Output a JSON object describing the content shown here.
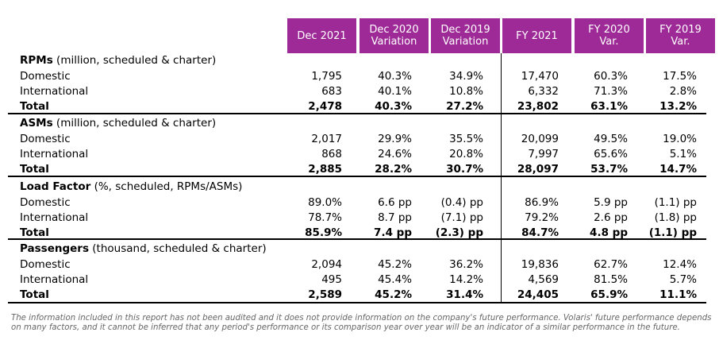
{
  "headers": [
    "Dec 2021",
    "Dec 2020\nVariation",
    "Dec 2019\nVariation",
    "FY 2021",
    "FY 2020\nVar.",
    "FY 2019\nVar."
  ],
  "sections": [
    {
      "title": "RPMs",
      "unit": " (million, scheduled & charter)",
      "rows": [
        {
          "label": "Domestic",
          "values": [
            "1,795",
            "40.3%",
            "34.9%",
            "17,470",
            "60.3%",
            "17.5%"
          ]
        },
        {
          "label": "International",
          "values": [
            "683",
            "40.1%",
            "10.8%",
            "6,332",
            "71.3%",
            "2.8%"
          ]
        },
        {
          "label": "Total",
          "values": [
            "2,478",
            "40.3%",
            "27.2%",
            "23,802",
            "63.1%",
            "13.2%"
          ]
        }
      ]
    },
    {
      "title": "ASMs",
      "unit": " (million, scheduled & charter)",
      "rows": [
        {
          "label": "Domestic",
          "values": [
            "2,017",
            "29.9%",
            "35.5%",
            "20,099",
            "49.5%",
            "19.0%"
          ]
        },
        {
          "label": "International",
          "values": [
            "868",
            "24.6%",
            "20.8%",
            "7,997",
            "65.6%",
            "5.1%"
          ]
        },
        {
          "label": "Total",
          "values": [
            "2,885",
            "28.2%",
            "30.7%",
            "28,097",
            "53.7%",
            "14.7%"
          ]
        }
      ]
    },
    {
      "title": "Load Factor",
      "unit": " (%, scheduled, RPMs/ASMs)",
      "rows": [
        {
          "label": "Domestic",
          "values": [
            "89.0%",
            "6.6 pp",
            "(0.4) pp",
            "86.9%",
            "5.9 pp",
            "(1.1) pp"
          ]
        },
        {
          "label": "International",
          "values": [
            "78.7%",
            "8.7 pp",
            "(7.1) pp",
            "79.2%",
            "2.6 pp",
            "(1.8) pp"
          ]
        },
        {
          "label": "Total",
          "values": [
            "85.9%",
            "7.4 pp",
            "(2.3) pp",
            "84.7%",
            "4.8 pp",
            "(1.1) pp"
          ]
        }
      ]
    },
    {
      "title": "Passengers",
      "unit": " (thousand, scheduled & charter)",
      "rows": [
        {
          "label": "Domestic",
          "values": [
            "2,094",
            "45.2%",
            "36.2%",
            "19,836",
            "62.7%",
            "12.4%"
          ]
        },
        {
          "label": "International",
          "values": [
            "495",
            "45.4%",
            "14.2%",
            "4,569",
            "81.5%",
            "5.7%"
          ]
        },
        {
          "label": "Total",
          "values": [
            "2,589",
            "45.2%",
            "31.4%",
            "24,405",
            "65.9%",
            "11.1%"
          ]
        }
      ]
    }
  ],
  "footnote": "The information included in this report has not been audited and it does not provide information on the company's future performance. Volaris' future performance depends on many factors, and it cannot be inferred that any period's performance or its comparison year over year will be an indicator of a similar performance in the future."
}
